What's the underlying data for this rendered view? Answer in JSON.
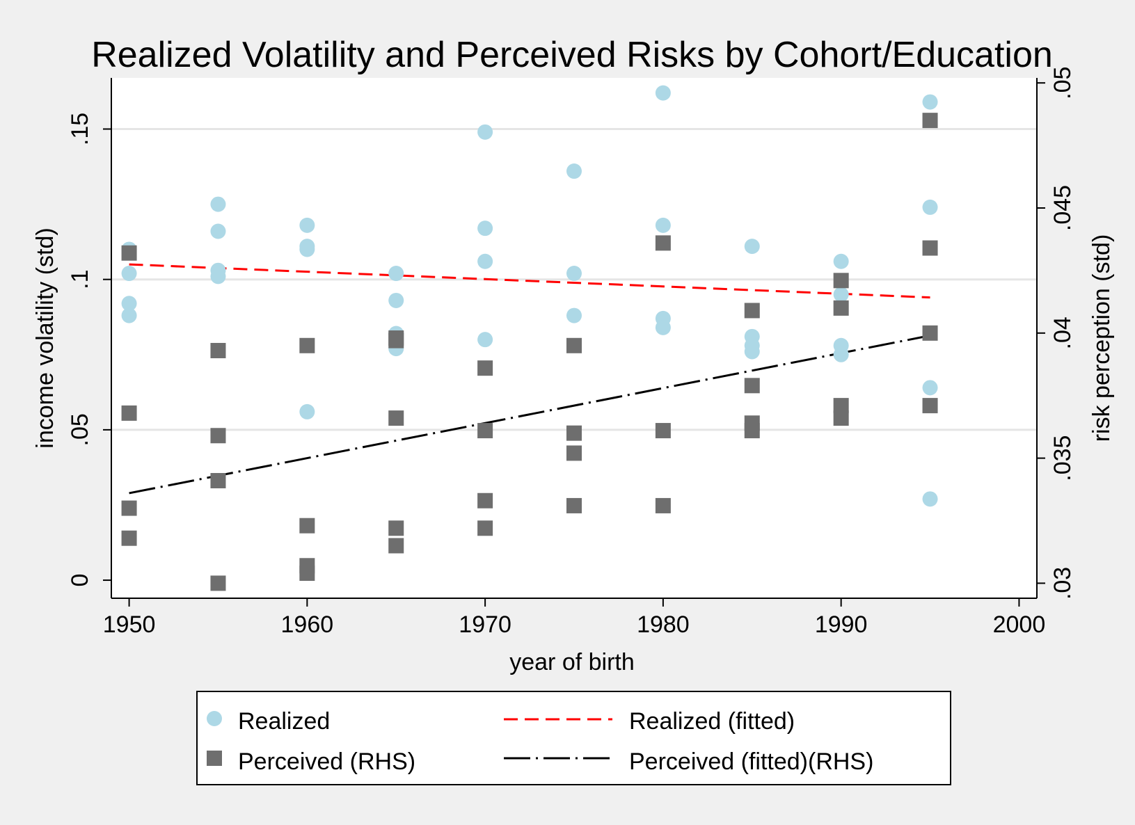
{
  "chart_data": {
    "type": "scatter",
    "title": "Realized Volatility and Perceived Risks by Cohort/Education",
    "xlabel": "year of birth",
    "ylabel": "income volatility (std)",
    "y2label": "risk perception (std)",
    "xlim": [
      1949,
      2001
    ],
    "ylim": [
      -0.006,
      0.167
    ],
    "y2lim": [
      0.0294,
      0.0502
    ],
    "xticks": [
      1950,
      1960,
      1970,
      1980,
      1990,
      2000
    ],
    "xtick_labels": [
      "1950",
      "1960",
      "1970",
      "1980",
      "1990",
      "2000"
    ],
    "yticks": [
      0,
      0.05,
      0.1,
      0.15
    ],
    "ytick_labels": [
      "0",
      ".05",
      ".1",
      ".15"
    ],
    "y2ticks": [
      0.03,
      0.035,
      0.04,
      0.045,
      0.05
    ],
    "y2tick_labels": [
      ".03",
      ".035",
      ".04",
      ".045",
      ".05"
    ],
    "grid": "horizontal",
    "legend_position": "bottom",
    "colors": {
      "realized": "#add8e6",
      "perceived": "#6e6e6e",
      "realized_fit": "#ff0000",
      "perceived_fit": "#000000",
      "plot_bg": "#ffffff",
      "page_bg": "#f0f0f0",
      "grid": "#e5e5e5"
    },
    "series": [
      {
        "name": "Realized",
        "axis": "left",
        "marker": "circle",
        "points": [
          [
            1950,
            0.11
          ],
          [
            1950,
            0.102
          ],
          [
            1950,
            0.092
          ],
          [
            1950,
            0.088
          ],
          [
            1955,
            0.125
          ],
          [
            1955,
            0.116
          ],
          [
            1955,
            0.103
          ],
          [
            1955,
            0.101
          ],
          [
            1960,
            0.118
          ],
          [
            1960,
            0.111
          ],
          [
            1960,
            0.11
          ],
          [
            1960,
            0.056
          ],
          [
            1965,
            0.102
          ],
          [
            1965,
            0.093
          ],
          [
            1965,
            0.082
          ],
          [
            1965,
            0.077
          ],
          [
            1970,
            0.149
          ],
          [
            1970,
            0.117
          ],
          [
            1970,
            0.106
          ],
          [
            1970,
            0.08
          ],
          [
            1975,
            0.136
          ],
          [
            1975,
            0.102
          ],
          [
            1975,
            0.088
          ],
          [
            1980,
            0.162
          ],
          [
            1980,
            0.118
          ],
          [
            1980,
            0.087
          ],
          [
            1980,
            0.084
          ],
          [
            1985,
            0.111
          ],
          [
            1985,
            0.081
          ],
          [
            1985,
            0.078
          ],
          [
            1985,
            0.076
          ],
          [
            1990,
            0.106
          ],
          [
            1990,
            0.095
          ],
          [
            1990,
            0.078
          ],
          [
            1990,
            0.075
          ],
          [
            1995,
            0.159
          ],
          [
            1995,
            0.124
          ],
          [
            1995,
            0.064
          ],
          [
            1995,
            0.027
          ]
        ]
      },
      {
        "name": "Perceived (RHS)",
        "axis": "right",
        "marker": "square",
        "points": [
          [
            1950,
            0.0432
          ],
          [
            1950,
            0.0368
          ],
          [
            1950,
            0.033
          ],
          [
            1950,
            0.0318
          ],
          [
            1955,
            0.0393
          ],
          [
            1955,
            0.0359
          ],
          [
            1955,
            0.0341
          ],
          [
            1955,
            0.03
          ],
          [
            1960,
            0.0395
          ],
          [
            1960,
            0.0323
          ],
          [
            1960,
            0.0307
          ],
          [
            1960,
            0.0304
          ],
          [
            1965,
            0.0398
          ],
          [
            1965,
            0.0397
          ],
          [
            1965,
            0.0366
          ],
          [
            1965,
            0.0322
          ],
          [
            1965,
            0.0315
          ],
          [
            1970,
            0.0386
          ],
          [
            1970,
            0.0361
          ],
          [
            1970,
            0.0333
          ],
          [
            1970,
            0.0322
          ],
          [
            1975,
            0.0395
          ],
          [
            1975,
            0.036
          ],
          [
            1975,
            0.0352
          ],
          [
            1975,
            0.0331
          ],
          [
            1980,
            0.0436
          ],
          [
            1980,
            0.0361
          ],
          [
            1980,
            0.0331
          ],
          [
            1985,
            0.0409
          ],
          [
            1985,
            0.0379
          ],
          [
            1985,
            0.0364
          ],
          [
            1985,
            0.0361
          ],
          [
            1990,
            0.0421
          ],
          [
            1990,
            0.041
          ],
          [
            1990,
            0.0371
          ],
          [
            1990,
            0.0366
          ],
          [
            1995,
            0.0485
          ],
          [
            1995,
            0.0434
          ],
          [
            1995,
            0.04
          ],
          [
            1995,
            0.0371
          ]
        ]
      },
      {
        "name": "Realized (fitted)",
        "axis": "left",
        "line": "dashed",
        "points": [
          [
            1950,
            0.105
          ],
          [
            1995,
            0.094
          ]
        ]
      },
      {
        "name": "Perceived (fitted)(RHS)",
        "axis": "right",
        "line": "dash-dot",
        "points": [
          [
            1950,
            0.0336
          ],
          [
            1995,
            0.0399
          ]
        ]
      }
    ]
  }
}
